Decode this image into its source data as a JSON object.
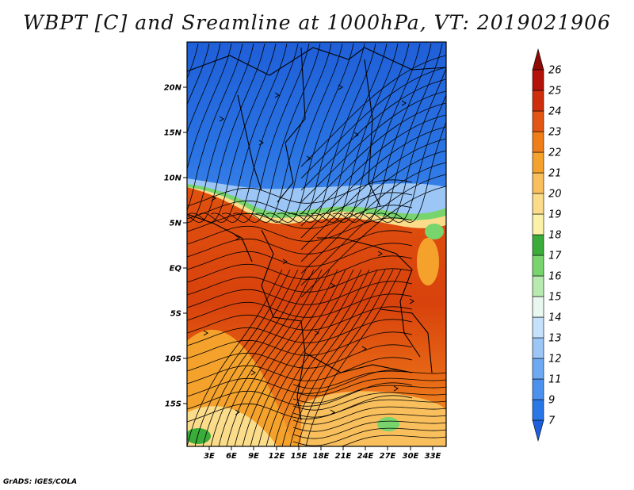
{
  "title": "WBPT [C] and Sreamline at 1000hPa, VT: 2019021906",
  "credit": "GrADS: IGES/COLA",
  "map": {
    "variable": "WBPT",
    "units": "C",
    "level": "1000hPa",
    "valid_time": "2019021906",
    "lat_ticks": [
      "20N",
      "15N",
      "10N",
      "5N",
      "EQ",
      "5S",
      "10S",
      "15S"
    ],
    "lon_ticks": [
      "3E",
      "6E",
      "9E",
      "12E",
      "15E",
      "18E",
      "21E",
      "24E",
      "27E",
      "30E",
      "33E"
    ]
  },
  "colorbar": {
    "labels": [
      "7",
      "9",
      "11",
      "12",
      "13",
      "14",
      "15",
      "16",
      "17",
      "18",
      "19",
      "20",
      "21",
      "22",
      "23",
      "24",
      "25",
      "26"
    ],
    "colors": [
      "#1e60dc",
      "#2a78e8",
      "#4b92ef",
      "#6eaaf3",
      "#9bc6f6",
      "#c6e2fa",
      "#e8f7f0",
      "#b8eab0",
      "#78d46c",
      "#3aac3a",
      "#fbf2a8",
      "#fbdc8a",
      "#f8bf5c",
      "#f4a22c",
      "#ef7d18",
      "#e25512",
      "#cf2e0c",
      "#b4120a",
      "#8e0a06"
    ]
  }
}
